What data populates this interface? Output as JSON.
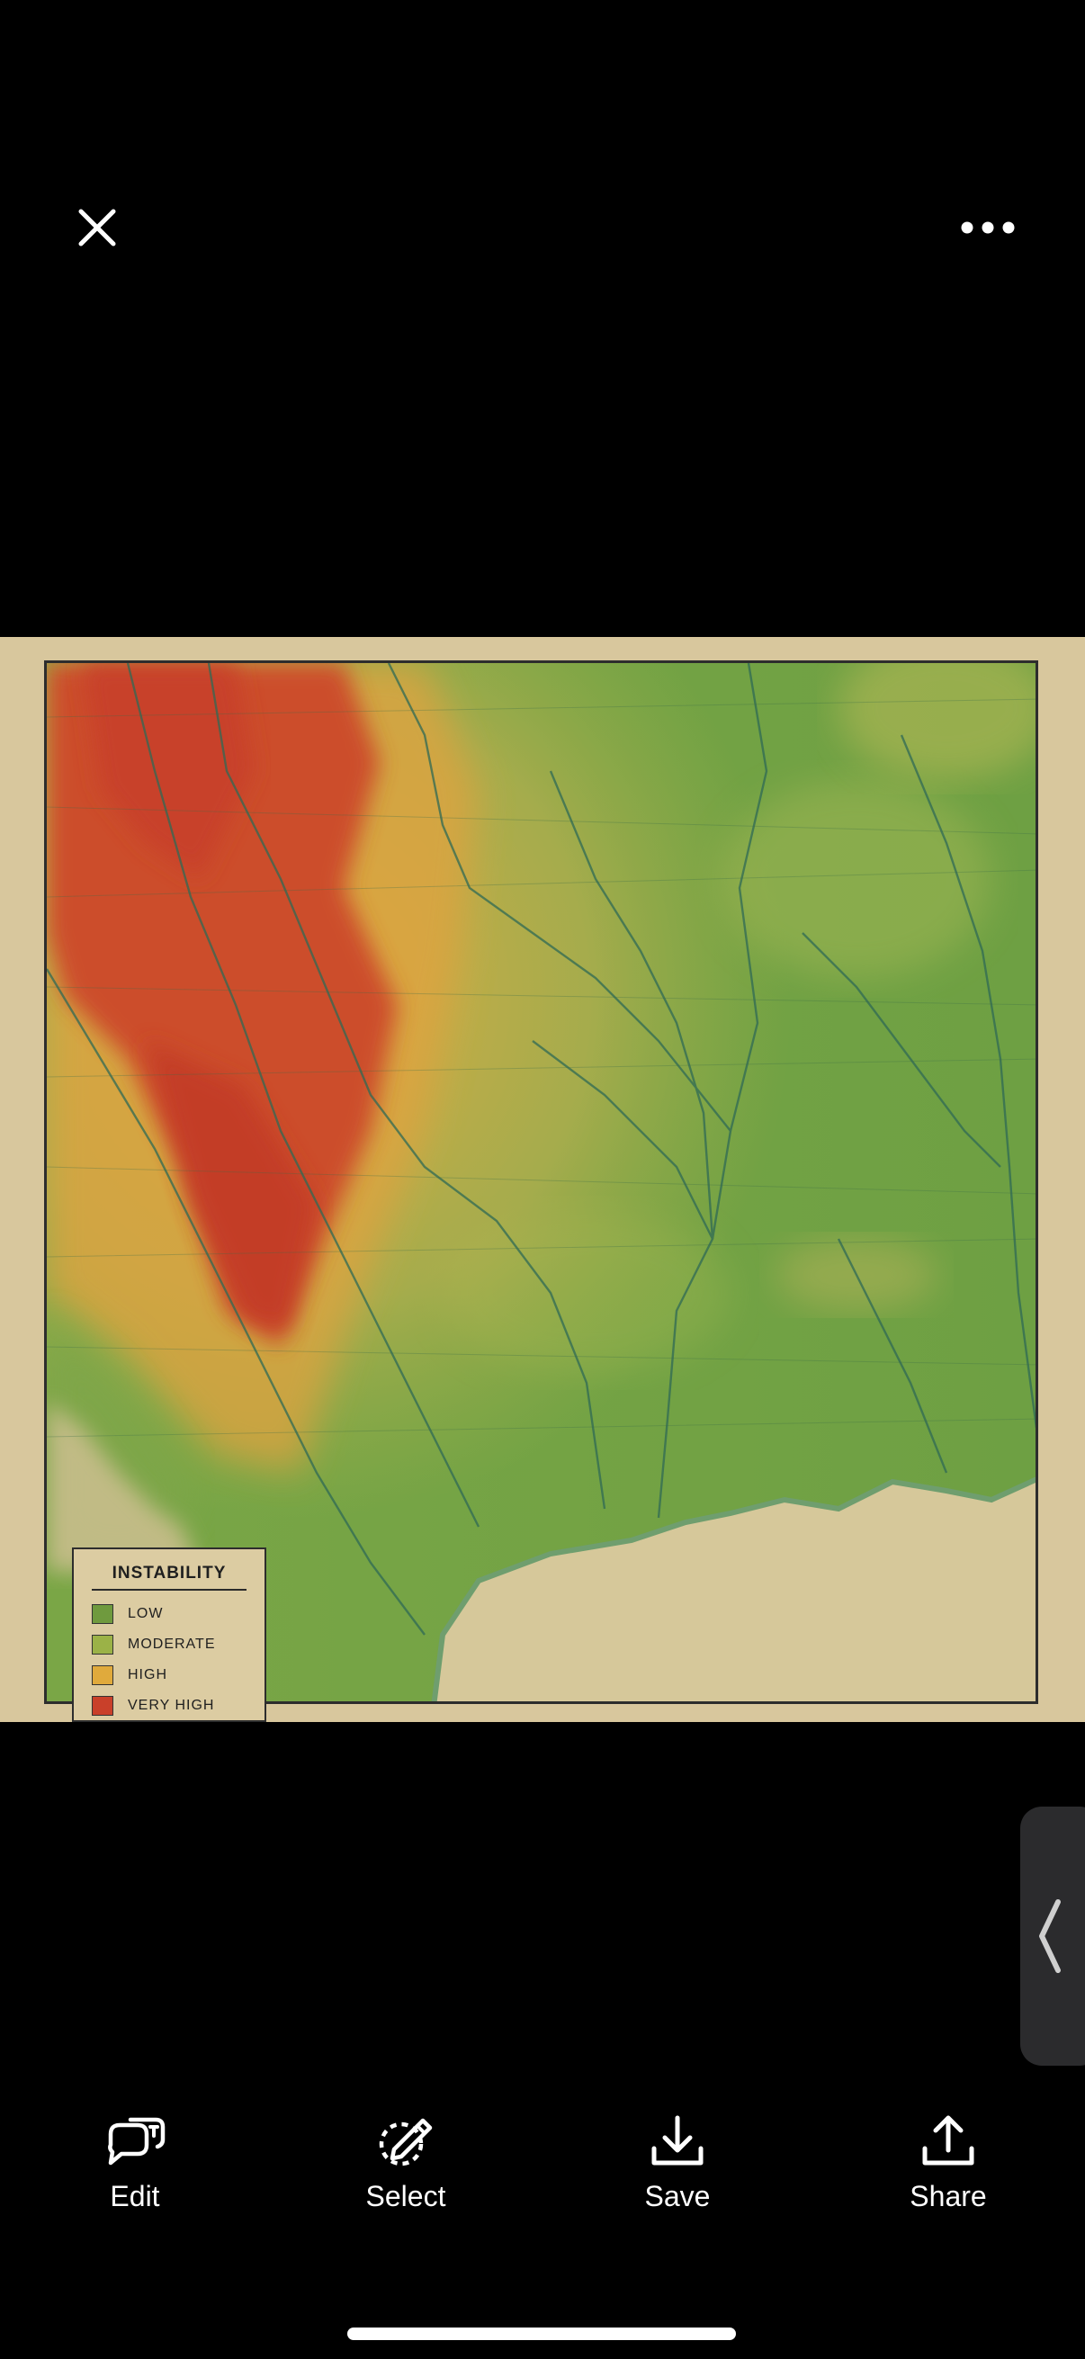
{
  "top_bar": {
    "close_icon": "close-icon",
    "more_icon": "ellipsis-icon"
  },
  "image": {
    "legend": {
      "title": "INSTABILITY",
      "items": [
        {
          "label": "LOW",
          "color": "#6f9a3e"
        },
        {
          "label": "MODERATE",
          "color": "#9bb247"
        },
        {
          "label": "HIGH",
          "color": "#e0aa3c"
        },
        {
          "label": "VERY HIGH",
          "color": "#c9402a"
        }
      ]
    }
  },
  "side_tab": {
    "icon": "chevron-left-icon"
  },
  "toolbar": {
    "edit_label": "Edit",
    "select_label": "Select",
    "save_label": "Save",
    "share_label": "Share"
  }
}
